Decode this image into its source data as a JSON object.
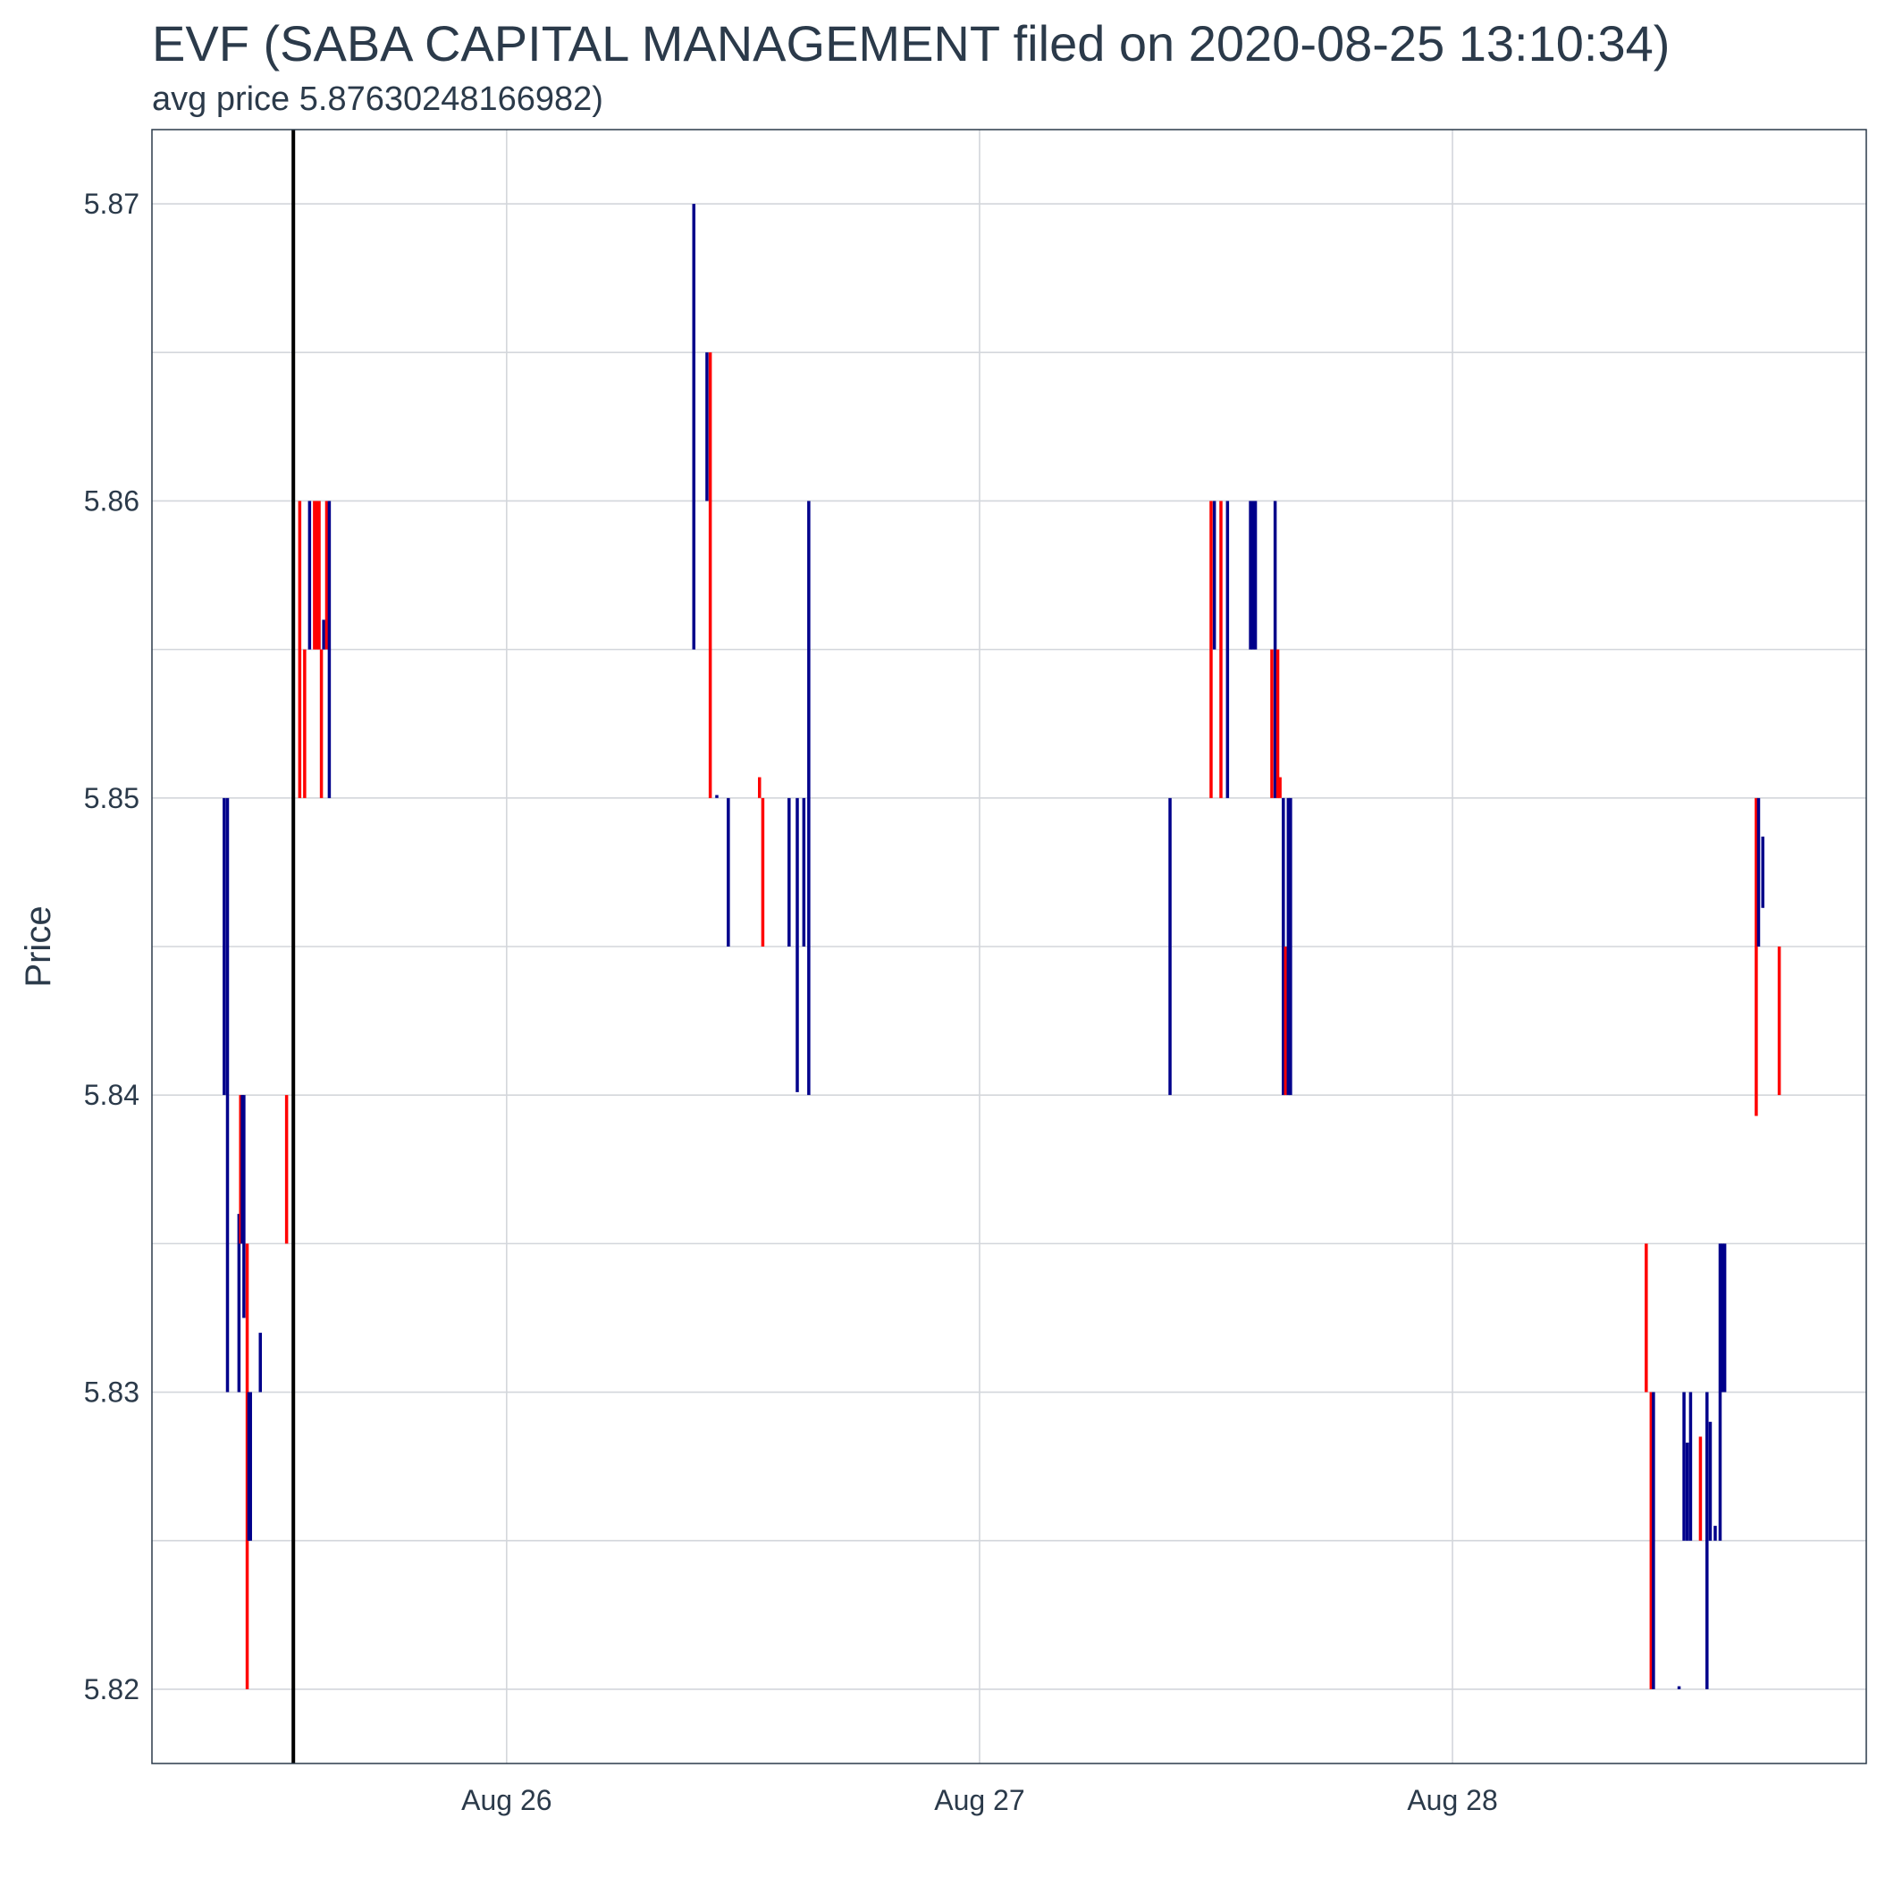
{
  "chart_data": {
    "type": "ohlc",
    "title": "EVF (SABA CAPITAL MANAGEMENT filed on 2020-08-25 13:10:34)",
    "subtitle": "avg price 5.87630248166982)",
    "xlabel": "",
    "ylabel": "Price",
    "x_tick_labels": [
      {
        "date": "2020-08-26",
        "label": "Aug 26"
      },
      {
        "date": "2020-08-27",
        "label": "Aug 27"
      },
      {
        "date": "2020-08-28",
        "label": "Aug 28"
      }
    ],
    "y_ticks": [
      5.82,
      5.83,
      5.84,
      5.85,
      5.86,
      5.87
    ],
    "ylim": [
      5.8175,
      5.8725
    ],
    "xlim": [
      "2020-08-25 06:00",
      "2020-08-28 21:00"
    ],
    "grid": true,
    "filing_marker": "2020-08-25 13:10:34",
    "colors": {
      "up": "#00008b",
      "down": "#ff0000",
      "marker": "#000000",
      "grid": "#d3d6db",
      "panel_border": "#2b3a4a"
    },
    "bars": [
      {
        "t": "2020-08-25 09:40",
        "low": 5.84,
        "high": 5.85,
        "dir": "up"
      },
      {
        "t": "2020-08-25 09:50",
        "low": 5.83,
        "high": 5.85,
        "dir": "up"
      },
      {
        "t": "2020-08-25 10:25",
        "low": 5.83,
        "high": 5.836,
        "dir": "up"
      },
      {
        "t": "2020-08-25 10:30",
        "low": 5.835,
        "high": 5.84,
        "dir": "down"
      },
      {
        "t": "2020-08-25 10:35",
        "low": 5.835,
        "high": 5.84,
        "dir": "up"
      },
      {
        "t": "2020-08-25 10:40",
        "low": 5.8325,
        "high": 5.84,
        "dir": "up"
      },
      {
        "t": "2020-08-25 10:50",
        "low": 5.82,
        "high": 5.835,
        "dir": "down"
      },
      {
        "t": "2020-08-25 10:55",
        "low": 5.825,
        "high": 5.83,
        "dir": "up"
      },
      {
        "t": "2020-08-25 11:00",
        "low": 5.825,
        "high": 5.83,
        "dir": "up"
      },
      {
        "t": "2020-08-25 11:30",
        "low": 5.83,
        "high": 5.832,
        "dir": "up"
      },
      {
        "t": "2020-08-25 12:50",
        "low": 5.835,
        "high": 5.84,
        "dir": "down"
      },
      {
        "t": "2020-08-25 13:30",
        "low": 5.85,
        "high": 5.86,
        "dir": "down"
      },
      {
        "t": "2020-08-25 13:45",
        "low": 5.85,
        "high": 5.855,
        "dir": "down"
      },
      {
        "t": "2020-08-25 14:00",
        "low": 5.855,
        "high": 5.86,
        "dir": "up"
      },
      {
        "t": "2020-08-25 14:15",
        "low": 5.855,
        "high": 5.86,
        "dir": "down"
      },
      {
        "t": "2020-08-25 14:22",
        "low": 5.855,
        "high": 5.86,
        "dir": "down"
      },
      {
        "t": "2020-08-25 14:29",
        "low": 5.855,
        "high": 5.86,
        "dir": "down"
      },
      {
        "t": "2020-08-25 14:36",
        "low": 5.85,
        "high": 5.855,
        "dir": "down"
      },
      {
        "t": "2020-08-25 14:43",
        "low": 5.855,
        "high": 5.856,
        "dir": "up"
      },
      {
        "t": "2020-08-25 14:52",
        "low": 5.855,
        "high": 5.86,
        "dir": "down"
      },
      {
        "t": "2020-08-25 15:00",
        "low": 5.85,
        "high": 5.86,
        "dir": "up"
      },
      {
        "t": "2020-08-26 09:30",
        "low": 5.855,
        "high": 5.87,
        "dir": "up"
      },
      {
        "t": "2020-08-26 10:10",
        "low": 5.86,
        "high": 5.865,
        "dir": "up"
      },
      {
        "t": "2020-08-26 10:20",
        "low": 5.85,
        "high": 5.865,
        "dir": "down"
      },
      {
        "t": "2020-08-26 10:40",
        "low": 5.85,
        "high": 5.8501,
        "dir": "up"
      },
      {
        "t": "2020-08-26 11:15",
        "low": 5.845,
        "high": 5.85,
        "dir": "up"
      },
      {
        "t": "2020-08-26 12:50",
        "low": 5.85,
        "high": 5.8507,
        "dir": "down"
      },
      {
        "t": "2020-08-26 13:00",
        "low": 5.845,
        "high": 5.85,
        "dir": "down"
      },
      {
        "t": "2020-08-26 14:20",
        "low": 5.845,
        "high": 5.85,
        "dir": "up"
      },
      {
        "t": "2020-08-26 14:45",
        "low": 5.8401,
        "high": 5.85,
        "dir": "up"
      },
      {
        "t": "2020-08-26 15:05",
        "low": 5.845,
        "high": 5.85,
        "dir": "up"
      },
      {
        "t": "2020-08-26 15:20",
        "low": 5.84,
        "high": 5.86,
        "dir": "up"
      },
      {
        "t": "2020-08-27 09:40",
        "low": 5.84,
        "high": 5.85,
        "dir": "up"
      },
      {
        "t": "2020-08-27 11:45",
        "low": 5.85,
        "high": 5.86,
        "dir": "down"
      },
      {
        "t": "2020-08-27 11:55",
        "low": 5.855,
        "high": 5.86,
        "dir": "up"
      },
      {
        "t": "2020-08-27 12:15",
        "low": 5.85,
        "high": 5.86,
        "dir": "down"
      },
      {
        "t": "2020-08-27 12:35",
        "low": 5.85,
        "high": 5.86,
        "dir": "up"
      },
      {
        "t": "2020-08-27 13:45",
        "low": 5.855,
        "high": 5.86,
        "dir": "up"
      },
      {
        "t": "2020-08-27 13:52",
        "low": 5.855,
        "high": 5.86,
        "dir": "up"
      },
      {
        "t": "2020-08-27 14:00",
        "low": 5.855,
        "high": 5.86,
        "dir": "up"
      },
      {
        "t": "2020-08-27 14:50",
        "low": 5.85,
        "high": 5.855,
        "dir": "down"
      },
      {
        "t": "2020-08-27 15:00",
        "low": 5.85,
        "high": 5.86,
        "dir": "up"
      },
      {
        "t": "2020-08-27 15:08",
        "low": 5.85,
        "high": 5.855,
        "dir": "down"
      },
      {
        "t": "2020-08-27 15:15",
        "low": 5.85,
        "high": 5.8507,
        "dir": "down"
      },
      {
        "t": "2020-08-27 15:25",
        "low": 5.84,
        "high": 5.85,
        "dir": "up"
      },
      {
        "t": "2020-08-27 15:32",
        "low": 5.84,
        "high": 5.845,
        "dir": "down"
      },
      {
        "t": "2020-08-27 15:40",
        "low": 5.84,
        "high": 5.85,
        "dir": "up"
      },
      {
        "t": "2020-08-27 15:47",
        "low": 5.84,
        "high": 5.85,
        "dir": "up"
      },
      {
        "t": "2020-08-28 09:50",
        "low": 5.83,
        "high": 5.835,
        "dir": "down"
      },
      {
        "t": "2020-08-28 10:05",
        "low": 5.82,
        "high": 5.83,
        "dir": "down"
      },
      {
        "t": "2020-08-28 10:12",
        "low": 5.82,
        "high": 5.83,
        "dir": "up"
      },
      {
        "t": "2020-08-28 11:30",
        "low": 5.82,
        "high": 5.8201,
        "dir": "up"
      },
      {
        "t": "2020-08-28 11:45",
        "low": 5.825,
        "high": 5.83,
        "dir": "up"
      },
      {
        "t": "2020-08-28 11:55",
        "low": 5.825,
        "high": 5.8283,
        "dir": "up"
      },
      {
        "t": "2020-08-28 12:05",
        "low": 5.825,
        "high": 5.83,
        "dir": "up"
      },
      {
        "t": "2020-08-28 12:35",
        "low": 5.825,
        "high": 5.8285,
        "dir": "down"
      },
      {
        "t": "2020-08-28 12:55",
        "low": 5.82,
        "high": 5.83,
        "dir": "up"
      },
      {
        "t": "2020-08-28 13:05",
        "low": 5.825,
        "high": 5.829,
        "dir": "up"
      },
      {
        "t": "2020-08-28 13:20",
        "low": 5.825,
        "high": 5.8255,
        "dir": "up"
      },
      {
        "t": "2020-08-28 13:35",
        "low": 5.825,
        "high": 5.835,
        "dir": "up"
      },
      {
        "t": "2020-08-28 13:42",
        "low": 5.83,
        "high": 5.835,
        "dir": "up"
      },
      {
        "t": "2020-08-28 13:49",
        "low": 5.83,
        "high": 5.835,
        "dir": "up"
      },
      {
        "t": "2020-08-28 15:25",
        "low": 5.8393,
        "high": 5.85,
        "dir": "down"
      },
      {
        "t": "2020-08-28 15:32",
        "low": 5.845,
        "high": 5.85,
        "dir": "up"
      },
      {
        "t": "2020-08-28 15:45",
        "low": 5.8463,
        "high": 5.8487,
        "dir": "up"
      },
      {
        "t": "2020-08-28 16:35",
        "low": 5.84,
        "high": 5.845,
        "dir": "down"
      }
    ]
  }
}
